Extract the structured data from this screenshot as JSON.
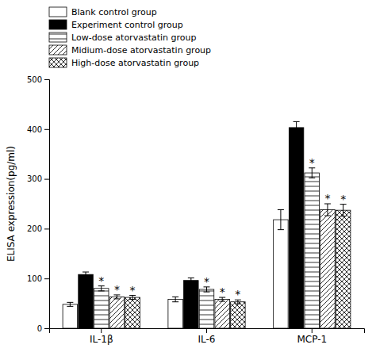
{
  "chart_data": {
    "type": "bar",
    "y_label": "ELISA expression(pg/ml)",
    "categories": [
      "IL-1β",
      "IL-6",
      "MCP-1"
    ],
    "series": [
      {
        "name": "Blank control group",
        "color": "white",
        "values": [
          48,
          58,
          218
        ],
        "errors": [
          4,
          5,
          20
        ]
      },
      {
        "name": "Experiment control group",
        "color": "black",
        "values": [
          108,
          96,
          403
        ],
        "errors": [
          5,
          5,
          12
        ]
      },
      {
        "name": "Low-dose atorvastatin group",
        "color": "white",
        "values": [
          80,
          78,
          312
        ],
        "errors": [
          5,
          5,
          10
        ]
      },
      {
        "name": "Midium-dose atorvastatin group",
        "color": "white",
        "values": [
          63,
          58,
          238
        ],
        "errors": [
          4,
          4,
          12
        ]
      },
      {
        "name": "High-dose atorvastatin group",
        "color": "white",
        "values": [
          62,
          53,
          237
        ],
        "errors": [
          4,
          4,
          12
        ]
      }
    ],
    "ylim": [
      0,
      500
    ],
    "yticks": [
      0,
      100,
      200,
      300,
      400,
      500
    ],
    "grid": false,
    "annotations": [
      {
        "text": "*",
        "series": "Low-dose atorvastatin group",
        "category": "IL-1β"
      },
      {
        "text": "*",
        "series": "Low-dose atorvastatin group",
        "category": "IL-6"
      },
      {
        "text": "*",
        "series": "Low-dose atorvastatin group",
        "category": "MCP-1"
      },
      {
        "text": "*",
        "series": "Midium-dose atorvastatin group",
        "category": "IL-1β"
      },
      {
        "text": "*",
        "series": "Midium-dose atorvastatin group",
        "category": "IL-6"
      },
      {
        "text": "*",
        "series": "Midium-dose atorvastatin group",
        "category": "MCP-1"
      },
      {
        "text": "*",
        "series": "High-dose atorvastatin group",
        "category": "IL-1β"
      },
      {
        "text": "*",
        "series": "High-dose atorvastatin group",
        "category": "IL-6"
      },
      {
        "text": "*",
        "series": "High-dose atorvastatin group",
        "category": "MCP-1"
      }
    ]
  }
}
